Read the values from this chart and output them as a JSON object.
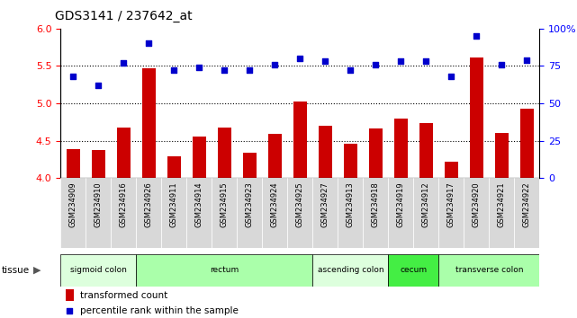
{
  "title": "GDS3141 / 237642_at",
  "samples": [
    "GSM234909",
    "GSM234910",
    "GSM234916",
    "GSM234926",
    "GSM234911",
    "GSM234914",
    "GSM234915",
    "GSM234923",
    "GSM234924",
    "GSM234925",
    "GSM234927",
    "GSM234913",
    "GSM234918",
    "GSM234919",
    "GSM234912",
    "GSM234917",
    "GSM234920",
    "GSM234921",
    "GSM234922"
  ],
  "bar_values": [
    4.39,
    4.37,
    4.68,
    5.47,
    4.29,
    4.55,
    4.68,
    4.34,
    4.59,
    5.02,
    4.7,
    4.46,
    4.67,
    4.8,
    4.74,
    4.22,
    5.61,
    4.6,
    4.93
  ],
  "scatter_values": [
    68,
    62,
    77,
    90,
    72,
    74,
    72,
    72,
    76,
    80,
    78,
    72,
    76,
    78,
    78,
    68,
    95,
    76,
    79
  ],
  "ylim_left": [
    4.0,
    6.0
  ],
  "ylim_right": [
    0,
    100
  ],
  "yticks_left": [
    4.0,
    4.5,
    5.0,
    5.5,
    6.0
  ],
  "yticks_right": [
    0,
    25,
    50,
    75,
    100
  ],
  "ytick_labels_right": [
    "0",
    "25",
    "50",
    "75",
    "100%"
  ],
  "hlines": [
    4.5,
    5.0,
    5.5
  ],
  "bar_color": "#cc0000",
  "scatter_color": "#0000cc",
  "xtick_bg": "#d8d8d8",
  "tissues": [
    {
      "label": "sigmoid colon",
      "start": 0,
      "end": 3,
      "color": "#ddffdd"
    },
    {
      "label": "rectum",
      "start": 3,
      "end": 10,
      "color": "#aaffaa"
    },
    {
      "label": "ascending colon",
      "start": 10,
      "end": 13,
      "color": "#ddffdd"
    },
    {
      "label": "cecum",
      "start": 13,
      "end": 15,
      "color": "#44ee44"
    },
    {
      "label": "transverse colon",
      "start": 15,
      "end": 19,
      "color": "#aaffaa"
    }
  ],
  "tissue_label": "tissue",
  "legend_bar": "transformed count",
  "legend_scatter": "percentile rank within the sample",
  "fig_bg": "#ffffff"
}
